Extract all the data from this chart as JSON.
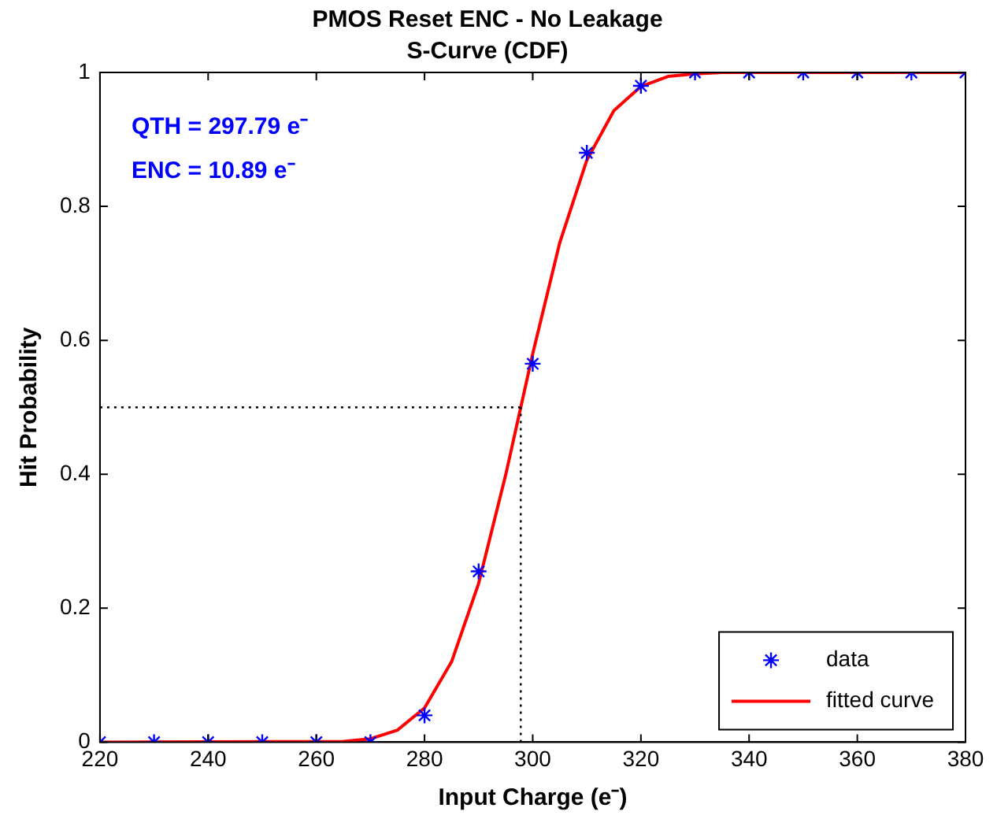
{
  "chart_data": {
    "type": "scatter",
    "title": "PMOS Reset ENC - No Leakage",
    "subtitle": "S-Curve (CDF)",
    "xlabel": "Input Charge (e⁻)",
    "ylabel": "Hit Probability",
    "xlim": [
      220,
      380
    ],
    "xticks": [
      220,
      240,
      260,
      280,
      300,
      320,
      340,
      360,
      380
    ],
    "ylim": [
      0,
      1
    ],
    "yticks": [
      0,
      0.2,
      0.4,
      0.6,
      0.8,
      1
    ],
    "grid": false,
    "legend": "bottom right",
    "series": [
      {
        "name": "data",
        "color": "#0000ff",
        "marker": "cross",
        "x": [
          220,
          230,
          240,
          250,
          260,
          270,
          280,
          290,
          300,
          310,
          320,
          330,
          340,
          350,
          360,
          370,
          380
        ],
        "values": [
          0,
          0,
          0,
          0,
          0,
          0,
          0.04,
          0.255,
          0.565,
          0.88,
          0.98,
          1,
          1,
          1,
          1,
          1,
          1
        ]
      },
      {
        "name": "fitted curve",
        "type": "line",
        "color": "#ff0000",
        "marker": "none",
        "line_style": "solid",
        "x": [
          220,
          265,
          270,
          275,
          280,
          285,
          290,
          295,
          300,
          305,
          310,
          315,
          320,
          325,
          330,
          335,
          380
        ],
        "values": [
          0,
          0.001,
          0.005,
          0.018,
          0.051,
          0.12,
          0.237,
          0.399,
          0.58,
          0.746,
          0.869,
          0.943,
          0.979,
          0.994,
          0.998,
          1,
          1
        ]
      }
    ],
    "ref_lines": [
      {
        "axis": "y",
        "value": 0.5,
        "color": "#000000",
        "line_style": "dotted"
      },
      {
        "axis": "x",
        "value": 297.79,
        "color": "#000000",
        "line_style": "dotted"
      }
    ],
    "annotations": [
      "QTH = 297.79 e⁻",
      "ENC = 10.89 e⁻"
    ]
  }
}
